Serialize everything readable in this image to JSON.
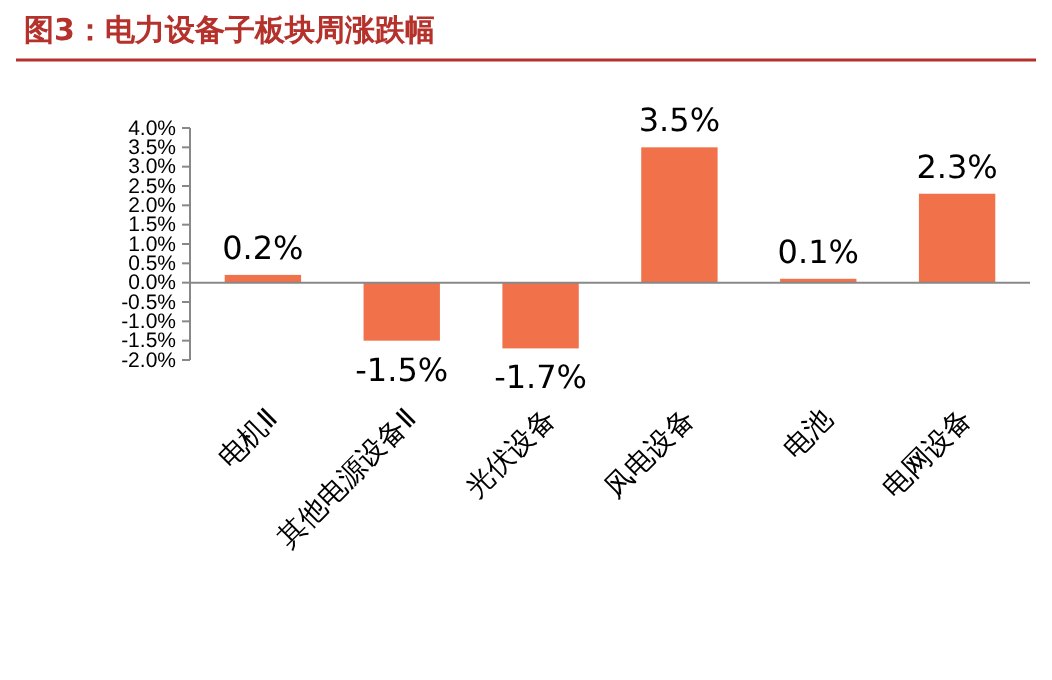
{
  "chart_data": {
    "type": "bar",
    "title": "图3：电力设备子板块周涨跌幅",
    "categories": [
      "电机Ⅱ",
      "其他电源设备Ⅱ",
      "光伏设备",
      "风电设备",
      "电池",
      "电网设备"
    ],
    "values": [
      0.2,
      -1.5,
      -1.7,
      3.5,
      0.1,
      2.3
    ],
    "value_labels": [
      "0.2%",
      "-1.5%",
      "-1.7%",
      "3.5%",
      "0.1%",
      "2.3%"
    ],
    "color": "#f0714a",
    "ylim": [
      -2,
      4
    ],
    "yticks": [
      {
        "value": -2,
        "label": "-2.0%"
      },
      {
        "value": -1.5,
        "label": "-1.5%"
      },
      {
        "value": -1,
        "label": "-1.0%"
      },
      {
        "value": -0.5,
        "label": "-0.5%"
      },
      {
        "value": 0,
        "label": "0.0%"
      },
      {
        "value": 0.5,
        "label": "0.5%"
      },
      {
        "value": 1,
        "label": "1.0%"
      },
      {
        "value": 1.5,
        "label": "1.5%"
      },
      {
        "value": 2,
        "label": "2.0%"
      },
      {
        "value": 2.5,
        "label": "2.5%"
      },
      {
        "value": 3,
        "label": "3.0%"
      },
      {
        "value": 3.5,
        "label": "3.5%"
      },
      {
        "value": 4,
        "label": "4.0%"
      }
    ]
  }
}
